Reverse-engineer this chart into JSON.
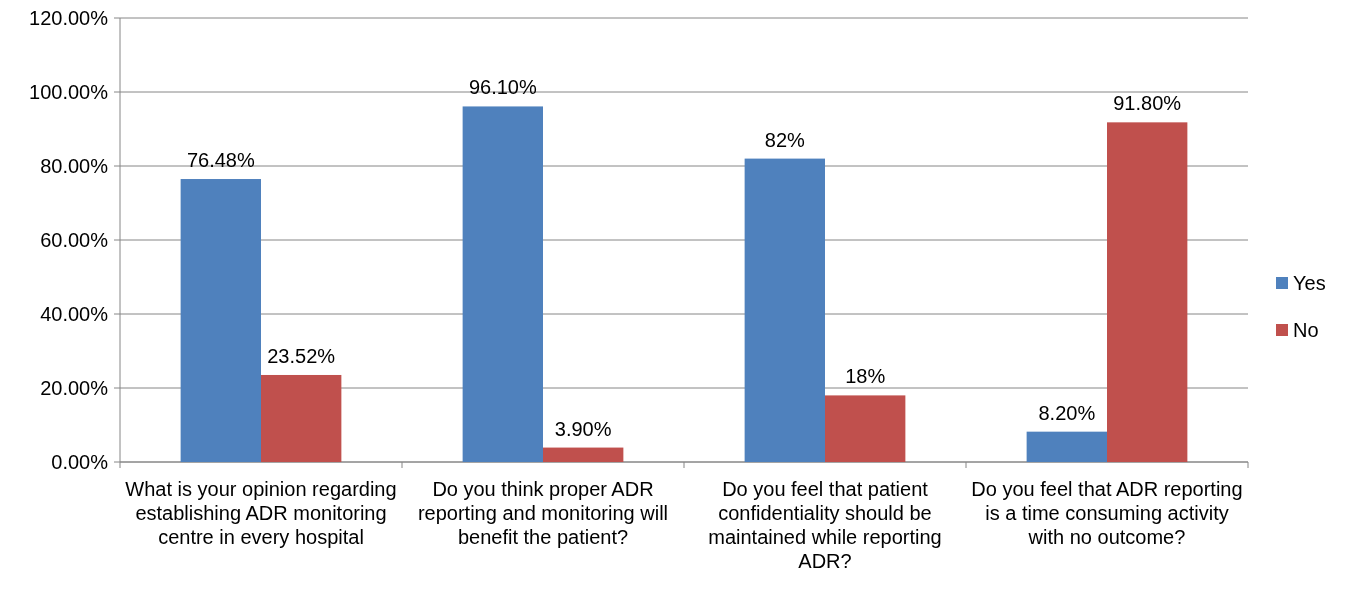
{
  "chart_data": {
    "type": "bar",
    "categories": [
      "What is your opinion regarding establishing ADR monitoring centre in every hospital",
      "Do you think proper ADR reporting and monitoring will benefit the patient?",
      "Do you feel that patient confidentiality should be maintained while reporting ADR?",
      "Do you feel that ADR reporting is a time consuming activity with no outcome?"
    ],
    "series": [
      {
        "name": "Yes",
        "color": "#4f81bd",
        "values": [
          76.48,
          96.1,
          82,
          8.2
        ],
        "value_labels": [
          "76.48%",
          "96.10%",
          "82%",
          "8.20%"
        ]
      },
      {
        "name": "No",
        "color": "#c0504d",
        "values": [
          23.52,
          3.9,
          18,
          91.8
        ],
        "value_labels": [
          "23.52%",
          "3.90%",
          "18%",
          "91.80%"
        ]
      }
    ],
    "ylim": [
      0,
      120
    ],
    "yticks": [
      {
        "value": 0,
        "label": "0.00%"
      },
      {
        "value": 20,
        "label": "20.00%"
      },
      {
        "value": 40,
        "label": "40.00%"
      },
      {
        "value": 60,
        "label": "60.00%"
      },
      {
        "value": 80,
        "label": "80.00%"
      },
      {
        "value": 100,
        "label": "100.00%"
      },
      {
        "value": 120,
        "label": "120.00%"
      }
    ],
    "grid": "y",
    "legend": "right"
  }
}
